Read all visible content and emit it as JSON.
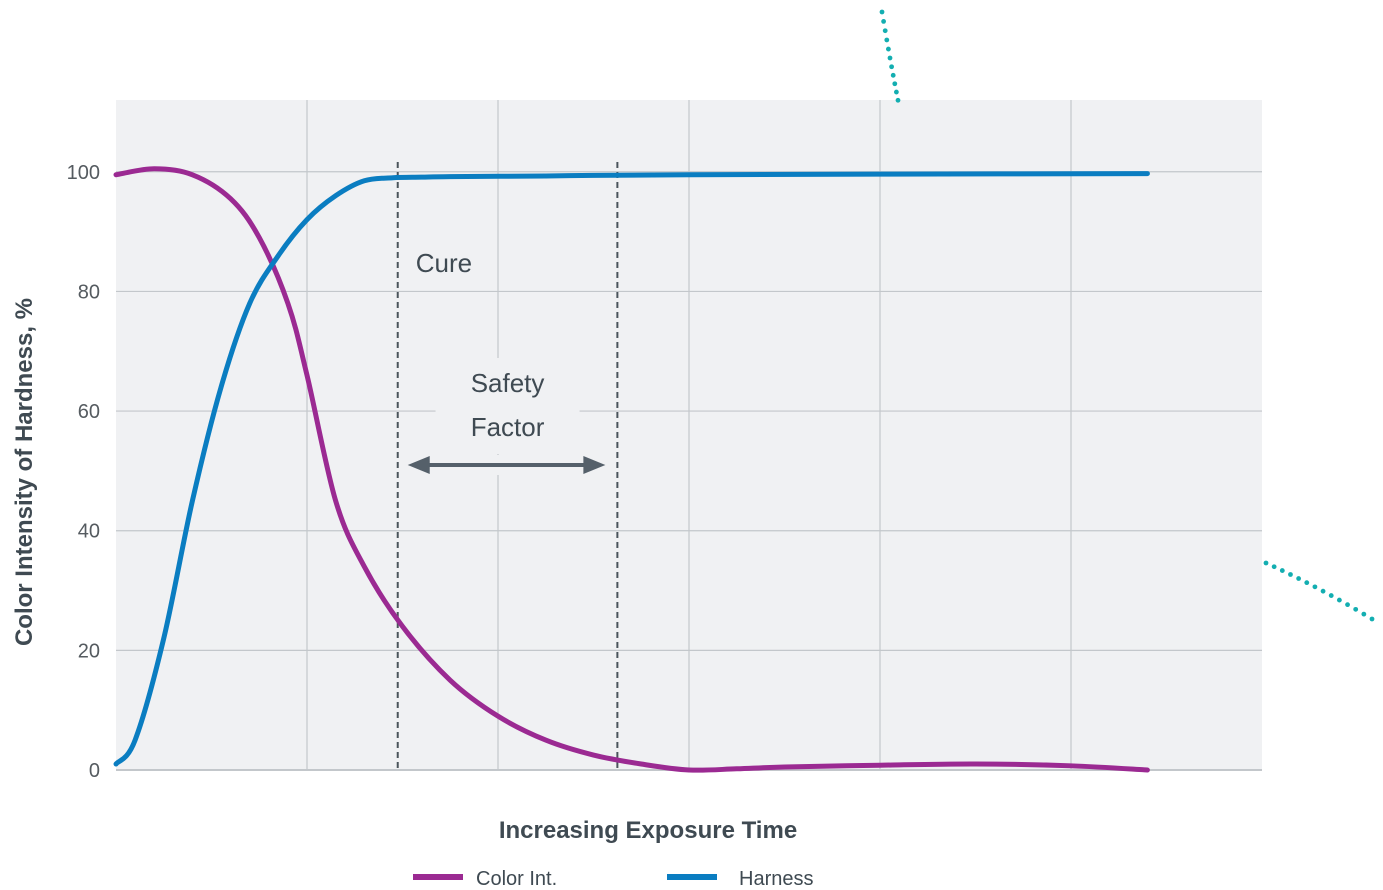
{
  "chart_data": {
    "type": "line",
    "title": "",
    "xlabel": "Increasing Exposure Time",
    "ylabel": "Color Intensity of Hardness, %",
    "x_tick_labels": [],
    "y_ticks": [
      0,
      20,
      40,
      60,
      80,
      100
    ],
    "ylim": [
      0,
      112
    ],
    "xlim": [
      0,
      12
    ],
    "grid": true,
    "legend_position": "bottom-center",
    "series": [
      {
        "name": "Color Int.",
        "color": "#9b2a92",
        "x": [
          0,
          0.4,
          0.8,
          1.2,
          1.5,
          1.8,
          2.0,
          2.3,
          2.6,
          3.0,
          3.5,
          4.0,
          4.5,
          5.0,
          5.5,
          6.0,
          6.5,
          7.0,
          8.0,
          9.0,
          10.0,
          10.8
        ],
        "y": [
          99.5,
          100.5,
          99.5,
          95.5,
          89,
          78,
          66,
          45,
          34,
          24,
          15,
          9,
          5,
          2.5,
          1,
          0,
          0.2,
          0.5,
          0.8,
          1.0,
          0.7,
          0
        ]
      },
      {
        "name": "Harness",
        "color": "#0a7dc1",
        "x": [
          0,
          0.2,
          0.5,
          0.8,
          1.1,
          1.4,
          1.7,
          2.0,
          2.3,
          2.6,
          2.9,
          3.2,
          3.5,
          4.5,
          5.0,
          6.0,
          8.0,
          10.8
        ],
        "y": [
          1,
          5,
          22,
          45,
          64,
          78,
          86,
          92,
          96,
          98.5,
          99,
          99.1,
          99.2,
          99.3,
          99.4,
          99.5,
          99.6,
          99.7
        ]
      }
    ],
    "markers": [
      {
        "label": "Cure",
        "x": 2.95,
        "style": "dashed"
      },
      {
        "label": "",
        "x": 5.25,
        "style": "dashed"
      }
    ],
    "annotations": {
      "cure_label": "Cure",
      "safety_line1": "Safety",
      "safety_line2": "Factor",
      "arrow_from_x": 2.95,
      "arrow_to_x": 5.25,
      "arrow_y": 51.5
    },
    "colors": {
      "plot_background": "#f0f1f3",
      "grid": "#c3c7cb",
      "marker_line": "#4a545b",
      "arrow": "#55606a",
      "decor_dots": "#13aeb1"
    }
  }
}
